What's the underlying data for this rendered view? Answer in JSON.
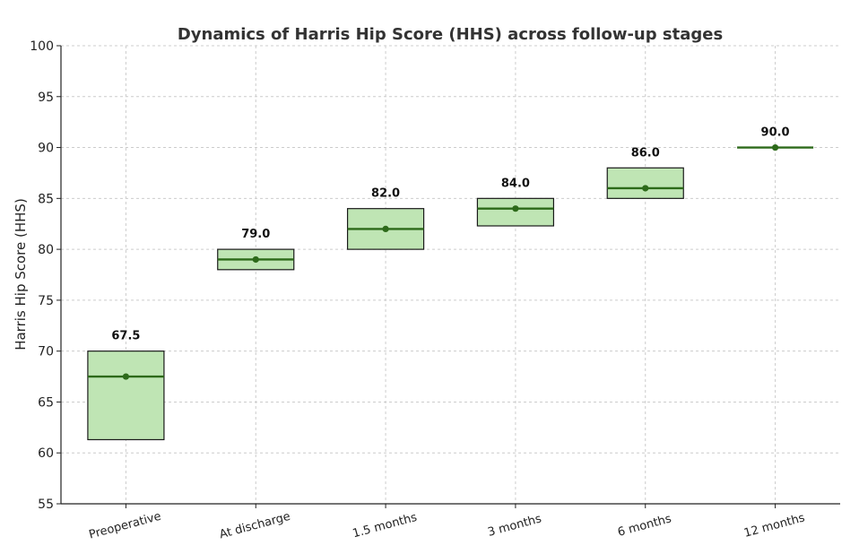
{
  "chart_data": {
    "type": "box",
    "title": "Dynamics of Harris Hip Score (HHS) across follow-up stages",
    "xlabel": "",
    "ylabel": "Harris Hip Score (HHS)",
    "ylim": [
      55,
      100
    ],
    "yticks": [
      55,
      60,
      65,
      70,
      75,
      80,
      85,
      90,
      95,
      100
    ],
    "grid": true,
    "categories": [
      "Preoperative",
      "At discharge",
      "1.5 months",
      "3 months",
      "6 months",
      "12 months"
    ],
    "boxes": [
      {
        "category": "Preoperative",
        "q1": 61.3,
        "median": 67.5,
        "q3": 70.0,
        "label": "67.5"
      },
      {
        "category": "At discharge",
        "q1": 78.0,
        "median": 79.0,
        "q3": 80.0,
        "label": "79.0"
      },
      {
        "category": "1.5 months",
        "q1": 80.0,
        "median": 82.0,
        "q3": 84.0,
        "label": "82.0"
      },
      {
        "category": "3 months",
        "q1": 82.3,
        "median": 84.0,
        "q3": 85.0,
        "label": "84.0"
      },
      {
        "category": "6 months",
        "q1": 85.0,
        "median": 86.0,
        "q3": 88.0,
        "label": "86.0"
      },
      {
        "category": "12 months",
        "q1": 90.0,
        "median": 90.0,
        "q3": 90.0,
        "label": "90.0"
      }
    ],
    "colors": {
      "box_fill": "#bfe5b4",
      "box_edge": "#1a1a1a",
      "median": "#2d6a1a",
      "point": "#2d6a1a"
    }
  }
}
